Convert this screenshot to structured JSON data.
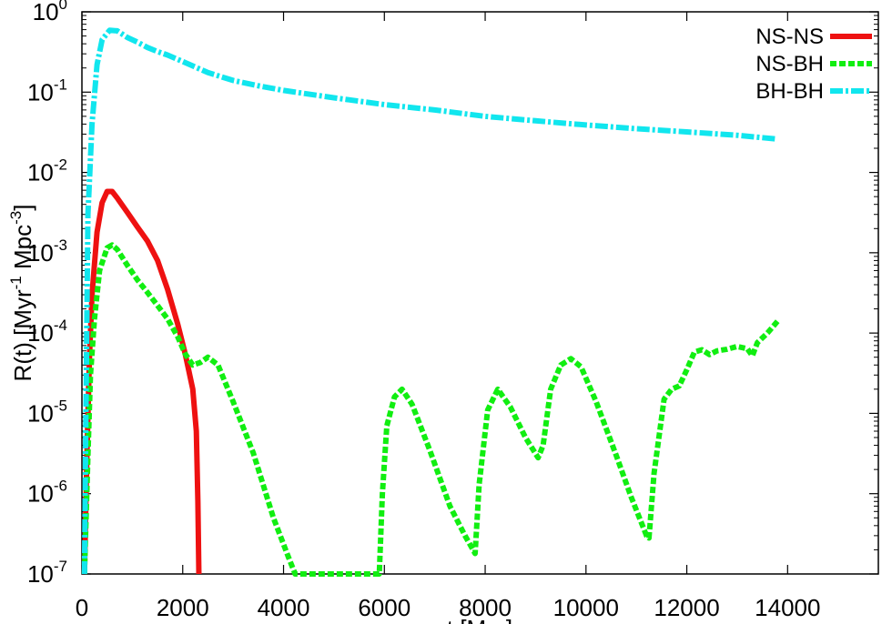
{
  "chart_data": {
    "type": "line",
    "xlabel": "t [Myr]",
    "ylabel_parts": [
      "R(t) [Myr",
      "-1",
      " Mpc",
      "-3",
      "]"
    ],
    "xlim": [
      0,
      15800
    ],
    "ylim": [
      1e-07,
      1
    ],
    "yscale": "log",
    "grid": false,
    "legend_position": "top-right",
    "x_ticks": [
      0,
      2000,
      4000,
      6000,
      8000,
      10000,
      12000,
      14000
    ],
    "y_ticks": [
      {
        "value": 1.0,
        "base": "10",
        "exp": "0"
      },
      {
        "value": 0.1,
        "base": "10",
        "exp": "-1"
      },
      {
        "value": 0.01,
        "base": "10",
        "exp": "-2"
      },
      {
        "value": 0.001,
        "base": "10",
        "exp": "-3"
      },
      {
        "value": 0.0001,
        "base": "10",
        "exp": "-4"
      },
      {
        "value": 1e-05,
        "base": "10",
        "exp": "-5"
      },
      {
        "value": 1e-06,
        "base": "10",
        "exp": "-6"
      },
      {
        "value": 1e-07,
        "base": "10",
        "exp": "-7"
      }
    ],
    "series": [
      {
        "name": "NS-NS",
        "color": "#ee1111",
        "dash": "solid",
        "points": [
          [
            50,
            1e-07
          ],
          [
            100,
            3e-06
          ],
          [
            150,
            5e-05
          ],
          [
            200,
            0.0003
          ],
          [
            300,
            0.0018
          ],
          [
            400,
            0.0042
          ],
          [
            500,
            0.0058
          ],
          [
            600,
            0.0058
          ],
          [
            700,
            0.0048
          ],
          [
            900,
            0.0032
          ],
          [
            1100,
            0.0021
          ],
          [
            1300,
            0.0014
          ],
          [
            1500,
            0.0008
          ],
          [
            1700,
            0.00035
          ],
          [
            1900,
            0.00013
          ],
          [
            2050,
            5.5e-05
          ],
          [
            2200,
            2e-05
          ],
          [
            2270,
            6e-06
          ],
          [
            2300,
            8e-07
          ],
          [
            2320,
            1e-07
          ]
        ]
      },
      {
        "name": "NS-BH",
        "color": "#11ee11",
        "dash": "dashed",
        "points": [
          [
            50,
            1e-07
          ],
          [
            120,
            3e-06
          ],
          [
            170,
            3e-05
          ],
          [
            250,
            0.00015
          ],
          [
            350,
            0.0006
          ],
          [
            500,
            0.00115
          ],
          [
            600,
            0.00125
          ],
          [
            700,
            0.0011
          ],
          [
            900,
            0.0007
          ],
          [
            1100,
            0.00046
          ],
          [
            1300,
            0.00032
          ],
          [
            1500,
            0.00022
          ],
          [
            1700,
            0.00015
          ],
          [
            1900,
            9e-05
          ],
          [
            2050,
            5.5e-05
          ],
          [
            2200,
            4e-05
          ],
          [
            2350,
            4.3e-05
          ],
          [
            2500,
            5e-05
          ],
          [
            2700,
            4e-05
          ],
          [
            3000,
            1.4e-05
          ],
          [
            3400,
            3.2e-06
          ],
          [
            3800,
            5e-07
          ],
          [
            4100,
            1.6e-07
          ],
          [
            4230,
            1e-07
          ],
          [
            5900,
            1e-07
          ],
          [
            5960,
            1e-06
          ],
          [
            6050,
            7e-06
          ],
          [
            6200,
            1.6e-05
          ],
          [
            6350,
            2e-05
          ],
          [
            6550,
            1.3e-05
          ],
          [
            6900,
            3.5e-06
          ],
          [
            7300,
            7e-07
          ],
          [
            7600,
            3e-07
          ],
          [
            7800,
            1.8e-07
          ],
          [
            7880,
            1.3e-06
          ],
          [
            8050,
            1.1e-05
          ],
          [
            8250,
            2e-05
          ],
          [
            8500,
            1.2e-05
          ],
          [
            8800,
            5e-06
          ],
          [
            9050,
            2.8e-06
          ],
          [
            9150,
            4e-06
          ],
          [
            9300,
            2e-05
          ],
          [
            9500,
            4e-05
          ],
          [
            9700,
            4.8e-05
          ],
          [
            9900,
            3.8e-05
          ],
          [
            10200,
            1.4e-05
          ],
          [
            10600,
            3e-06
          ],
          [
            10900,
            9e-07
          ],
          [
            11200,
            3e-07
          ],
          [
            11250,
            2.8e-07
          ],
          [
            11350,
            1.8e-06
          ],
          [
            11550,
            1.5e-05
          ],
          [
            11700,
            2e-05
          ],
          [
            11850,
            2.2e-05
          ],
          [
            12000,
            3.5e-05
          ],
          [
            12150,
            5.8e-05
          ],
          [
            12300,
            6.2e-05
          ],
          [
            12450,
            5.4e-05
          ],
          [
            12600,
            6e-05
          ],
          [
            12800,
            6.3e-05
          ],
          [
            13000,
            6.8e-05
          ],
          [
            13200,
            6.4e-05
          ],
          [
            13300,
            5.2e-05
          ],
          [
            13400,
            7.6e-05
          ],
          [
            13600,
            0.0001
          ],
          [
            13800,
            0.00014
          ]
        ]
      },
      {
        "name": "BH-BH",
        "color": "#11e6ee",
        "dash": "dashdot",
        "points": [
          [
            50,
            1e-07
          ],
          [
            80,
            1e-05
          ],
          [
            120,
            0.003
          ],
          [
            200,
            0.04
          ],
          [
            300,
            0.22
          ],
          [
            400,
            0.45
          ],
          [
            550,
            0.59
          ],
          [
            700,
            0.58
          ],
          [
            900,
            0.48
          ],
          [
            1100,
            0.42
          ],
          [
            1300,
            0.36
          ],
          [
            1500,
            0.32
          ],
          [
            1700,
            0.29
          ],
          [
            2000,
            0.24
          ],
          [
            2500,
            0.175
          ],
          [
            3000,
            0.14
          ],
          [
            3500,
            0.12
          ],
          [
            4000,
            0.105
          ],
          [
            5000,
            0.085
          ],
          [
            6000,
            0.07
          ],
          [
            7000,
            0.06
          ],
          [
            8000,
            0.05
          ],
          [
            9000,
            0.044
          ],
          [
            10000,
            0.039
          ],
          [
            11000,
            0.035
          ],
          [
            12000,
            0.032
          ],
          [
            13000,
            0.029
          ],
          [
            13800,
            0.026
          ]
        ]
      }
    ]
  }
}
